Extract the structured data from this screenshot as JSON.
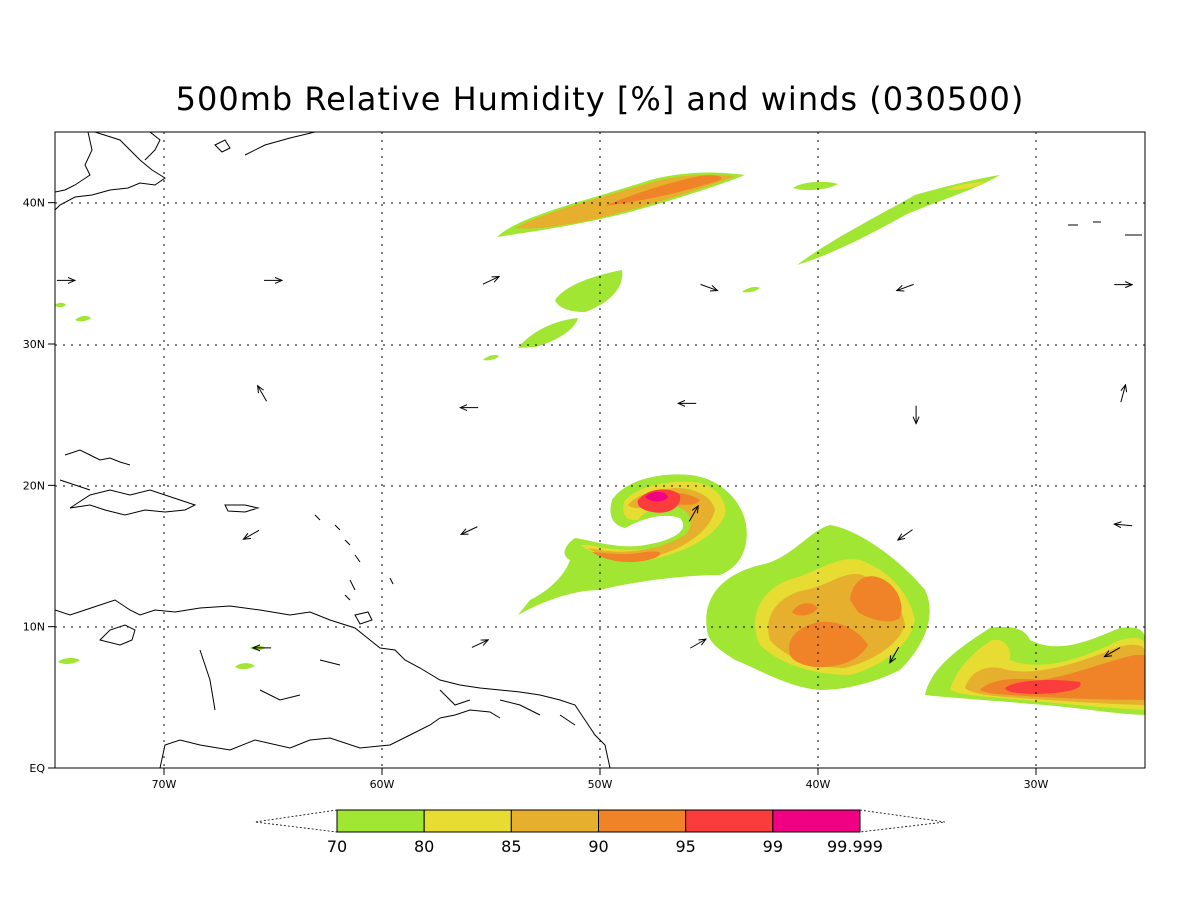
{
  "title": "500mb Relative Humidity [%] and winds (030500)",
  "map": {
    "lon_range": [
      -75,
      -25
    ],
    "lat_range": [
      0,
      45
    ],
    "lon_ticks": [
      {
        "lon": -70,
        "label": "70W"
      },
      {
        "lon": -60,
        "label": "60W"
      },
      {
        "lon": -50,
        "label": "50W"
      },
      {
        "lon": -40,
        "label": "40W"
      },
      {
        "lon": -30,
        "label": "30W"
      }
    ],
    "lat_ticks": [
      {
        "lat": 0,
        "label": "EQ"
      },
      {
        "lat": 10,
        "label": "10N"
      },
      {
        "lat": 20,
        "label": "20N"
      },
      {
        "lat": 30,
        "label": "30N"
      },
      {
        "lat": 40,
        "label": "40N"
      }
    ]
  },
  "colorbar": {
    "levels": [
      "70",
      "80",
      "85",
      "90",
      "95",
      "99",
      "99.999"
    ],
    "colors": [
      "#a0e632",
      "#e6dc32",
      "#e6af2d",
      "#f08228",
      "#fa3c3c",
      "#f00082"
    ]
  },
  "colors": {
    "rh70": "#a0e632",
    "rh80": "#e6dc32",
    "rh85": "#e6af2d",
    "rh90": "#f08228",
    "rh95": "#fa3c3c",
    "rh99": "#f00082"
  },
  "wind_vectors": [
    {
      "lon": -74.5,
      "lat": 34.5,
      "dir": 90
    },
    {
      "lon": -65,
      "lat": 34.5,
      "dir": 90
    },
    {
      "lon": -55,
      "lat": 34.5,
      "dir": 65
    },
    {
      "lon": -45,
      "lat": 34,
      "dir": 110
    },
    {
      "lon": -36,
      "lat": 34,
      "dir": 250
    },
    {
      "lon": -26,
      "lat": 34.2,
      "dir": 90
    },
    {
      "lon": -65.5,
      "lat": 26.5,
      "dir": 330
    },
    {
      "lon": -56,
      "lat": 25.5,
      "dir": 270
    },
    {
      "lon": -46,
      "lat": 25.8,
      "dir": 270
    },
    {
      "lon": -35.5,
      "lat": 25,
      "dir": 180
    },
    {
      "lon": -26,
      "lat": 26.5,
      "dir": 15
    },
    {
      "lon": -66,
      "lat": 16.5,
      "dir": 240
    },
    {
      "lon": -56,
      "lat": 16.8,
      "dir": 245
    },
    {
      "lon": -45.7,
      "lat": 18.0,
      "dir": 30
    },
    {
      "lon": -36,
      "lat": 16.5,
      "dir": 235
    },
    {
      "lon": -26,
      "lat": 17.2,
      "dir": 275
    },
    {
      "lon": -65.5,
      "lat": 8.5,
      "dir": 270
    },
    {
      "lon": -55.5,
      "lat": 8.8,
      "dir": 65
    },
    {
      "lon": -45.5,
      "lat": 8.8,
      "dir": 60
    },
    {
      "lon": -36.5,
      "lat": 8.0,
      "dir": 210
    },
    {
      "lon": -26.5,
      "lat": 8.2,
      "dir": 240
    }
  ]
}
